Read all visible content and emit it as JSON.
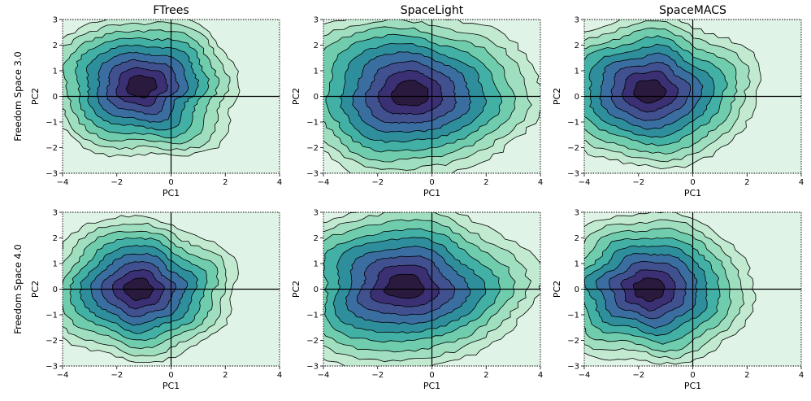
{
  "chart_data": {
    "type": "contour",
    "column_titles": [
      "FTrees",
      "SpaceLight",
      "SpaceMACS"
    ],
    "row_labels": [
      "Freedom Space 3.0",
      "Freedom Space 4.0"
    ],
    "xlabel": "PC1",
    "ylabel": "PC2",
    "xlim": [
      -4,
      4
    ],
    "ylim": [
      -3,
      3
    ],
    "xticks": [
      -4,
      -2,
      0,
      2,
      4
    ],
    "yticks": [
      -3,
      -2,
      -1,
      0,
      1,
      2,
      3
    ],
    "reference_lines": {
      "x": 0,
      "y": 0
    },
    "density_levels": 9,
    "level_colors": [
      "#dff3e6",
      "#c2ead1",
      "#9fdfbf",
      "#6fcdae",
      "#42b0a5",
      "#2e8e9c",
      "#3b6ea0",
      "#41508f",
      "#3b3073",
      "#2a1a3e"
    ],
    "panels": [
      {
        "row": "Freedom Space 3.0",
        "column": "FTrees",
        "center": [
          -1.1,
          0.4
        ],
        "spread": [
          1.25,
          0.95
        ]
      },
      {
        "row": "Freedom Space 3.0",
        "column": "SpaceLight",
        "center": [
          -0.8,
          0.1
        ],
        "spread": [
          1.6,
          1.1
        ]
      },
      {
        "row": "Freedom Space 3.0",
        "column": "SpaceMACS",
        "center": [
          -1.6,
          0.2
        ],
        "spread": [
          1.35,
          1.0
        ]
      },
      {
        "row": "Freedom Space 4.0",
        "column": "FTrees",
        "center": [
          -1.2,
          0.0
        ],
        "spread": [
          1.2,
          0.95
        ]
      },
      {
        "row": "Freedom Space 4.0",
        "column": "SpaceLight",
        "center": [
          -1.0,
          0.1
        ],
        "spread": [
          1.6,
          1.1
        ]
      },
      {
        "row": "Freedom Space 4.0",
        "column": "SpaceMACS",
        "center": [
          -1.6,
          0.0
        ],
        "spread": [
          1.3,
          1.0
        ]
      }
    ]
  }
}
